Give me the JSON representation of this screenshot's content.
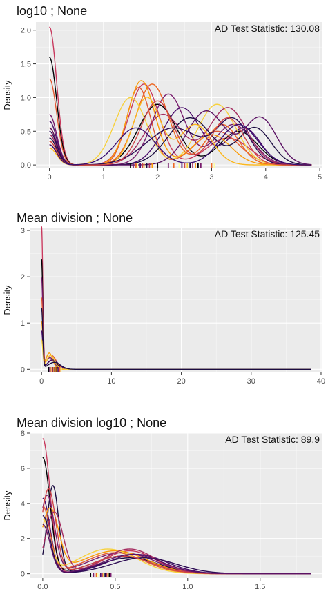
{
  "chart_data": [
    {
      "type": "line",
      "title": "log10 ; None",
      "annotation": "AD Test Statistic: 130.08",
      "xlabel": "",
      "ylabel": "Density",
      "xlim": [
        -0.25,
        5.05
      ],
      "ylim": [
        -0.05,
        2.12
      ],
      "x_ticks": [
        0,
        1,
        2,
        3,
        4,
        5
      ],
      "y_ticks": [
        0.0,
        0.5,
        1.0,
        1.5,
        2.0
      ],
      "grid": true,
      "legend": "none",
      "palette": [
        "#000004",
        "#1b0c41",
        "#4a0c6b",
        "#781c6d",
        "#a52c60",
        "#cf4446",
        "#ed6925",
        "#fb9b06",
        "#f7d13d",
        "#fcffa4"
      ],
      "series": [
        {
          "color": "#c8385d",
          "zero_peak": 2.05,
          "bumps": [
            [
              1.75,
              0.28,
              1.2
            ],
            [
              3.3,
              0.4,
              0.4
            ]
          ]
        },
        {
          "color": "#000004",
          "zero_peak": 1.6,
          "bumps": [
            [
              2.0,
              0.35,
              0.9
            ],
            [
              3.5,
              0.35,
              0.5
            ]
          ]
        },
        {
          "color": "#e35933",
          "zero_peak": 1.28,
          "bumps": [
            [
              1.65,
              0.22,
              1.15
            ],
            [
              3.1,
              0.4,
              0.5
            ]
          ]
        },
        {
          "color": "#781c6d",
          "zero_peak": 0.75,
          "bumps": [
            [
              2.2,
              0.3,
              1.05
            ],
            [
              3.4,
              0.35,
              0.6
            ]
          ]
        },
        {
          "color": "#4a0c6b",
          "zero_peak": 0.65,
          "bumps": [
            [
              2.45,
              0.35,
              0.85
            ],
            [
              3.6,
              0.3,
              0.55
            ]
          ]
        },
        {
          "color": "#fb9b06",
          "zero_peak": 0.55,
          "bumps": [
            [
              1.7,
              0.25,
              1.25
            ],
            [
              3.0,
              0.35,
              0.45
            ]
          ]
        },
        {
          "color": "#f7d13d",
          "zero_peak": 0.35,
          "bumps": [
            [
              1.5,
              0.3,
              1.0
            ],
            [
              3.1,
              0.35,
              0.9
            ]
          ]
        },
        {
          "color": "#a52c60",
          "zero_peak": 0.45,
          "bumps": [
            [
              2.1,
              0.35,
              0.75
            ],
            [
              3.3,
              0.35,
              0.85
            ]
          ]
        },
        {
          "color": "#1b0c41",
          "zero_peak": 0.4,
          "bumps": [
            [
              2.6,
              0.4,
              0.7
            ],
            [
              3.8,
              0.3,
              0.55
            ]
          ]
        },
        {
          "color": "#ed6925",
          "zero_peak": 0.3,
          "bumps": [
            [
              1.9,
              0.3,
              1.2
            ],
            [
              3.2,
              0.3,
              0.6
            ]
          ]
        },
        {
          "color": "#5b1264",
          "zero_peak": 0.55,
          "bumps": [
            [
              2.9,
              0.35,
              0.8
            ],
            [
              3.9,
              0.3,
              0.7
            ]
          ]
        },
        {
          "color": "#fcb71c",
          "zero_peak": 0.25,
          "bumps": [
            [
              1.8,
              0.25,
              1.0
            ],
            [
              2.7,
              0.3,
              0.6
            ]
          ]
        },
        {
          "color": "#2c0b54",
          "zero_peak": 0.5,
          "bumps": [
            [
              2.3,
              0.5,
              0.55
            ],
            [
              3.4,
              0.3,
              0.65
            ]
          ]
        },
        {
          "color": "#cf4446",
          "zero_peak": 0.35,
          "bumps": [
            [
              2.0,
              0.3,
              0.95
            ],
            [
              3.3,
              0.3,
              0.7
            ]
          ]
        },
        {
          "color": "#3b0f70",
          "zero_peak": 0.3,
          "bumps": [
            [
              1.6,
              0.35,
              0.55
            ],
            [
              3.5,
              0.35,
              0.6
            ]
          ]
        }
      ],
      "rug": [
        1.5,
        1.55,
        1.6,
        1.63,
        1.68,
        1.72,
        1.75,
        1.8,
        1.85,
        1.9,
        2.0,
        2.2,
        2.3,
        2.4,
        2.45,
        2.5,
        2.55,
        2.6,
        2.65,
        2.7,
        2.75,
        2.8,
        3.0,
        3.05
      ]
    },
    {
      "type": "line",
      "title": "Mean division ; None",
      "annotation": "AD Test Statistic: 125.45",
      "xlabel": "",
      "ylabel": "Density",
      "xlim": [
        -1.7,
        40.2
      ],
      "ylim": [
        -0.07,
        3.06
      ],
      "x_ticks": [
        0,
        10,
        20,
        30,
        40
      ],
      "y_ticks": [
        0,
        1,
        2,
        3
      ],
      "grid": true,
      "legend": "none",
      "palette": [
        "#000004",
        "#1b0c41",
        "#4a0c6b",
        "#781c6d",
        "#a52c60",
        "#cf4446",
        "#ed6925",
        "#fb9b06",
        "#f7d13d",
        "#fcffa4"
      ],
      "series": [
        {
          "color": "#c8385d",
          "zero_peak": 3.05,
          "bumps": [
            [
              1.3,
              0.6,
              0.3
            ]
          ]
        },
        {
          "color": "#000004",
          "zero_peak": 2.35,
          "bumps": [
            [
              1.5,
              0.7,
              0.2
            ]
          ]
        },
        {
          "color": "#781c6d",
          "zero_peak": 1.95,
          "bumps": [
            [
              1.2,
              0.6,
              0.25
            ]
          ]
        },
        {
          "color": "#e35933",
          "zero_peak": 1.5,
          "bumps": [
            [
              1.4,
              0.7,
              0.3
            ]
          ]
        },
        {
          "color": "#fb9b06",
          "zero_peak": 1.0,
          "bumps": [
            [
              1.1,
              0.5,
              0.35
            ]
          ]
        },
        {
          "color": "#4a0c6b",
          "zero_peak": 0.8,
          "bumps": [
            [
              1.6,
              0.8,
              0.2
            ]
          ]
        },
        {
          "color": "#f7d13d",
          "zero_peak": 0.6,
          "bumps": [
            [
              1.3,
              0.6,
              0.3
            ]
          ]
        },
        {
          "color": "#1b0c41",
          "zero_peak": 1.3,
          "bumps": [
            [
              1.8,
              0.9,
              0.15
            ]
          ]
        }
      ],
      "rug": [
        1.0,
        1.2,
        1.4,
        1.5,
        1.6,
        1.7,
        1.8,
        1.9,
        2.0,
        2.1,
        2.2,
        2.4,
        2.6,
        2.8
      ]
    },
    {
      "type": "line",
      "title": "Mean division log10 ; None",
      "annotation": "AD Test Statistic: 89.9",
      "xlabel": "",
      "ylabel": "Density",
      "xlim": [
        -0.09,
        1.93
      ],
      "ylim": [
        -0.25,
        8.0
      ],
      "x_ticks": [
        0.0,
        0.5,
        1.0,
        1.5
      ],
      "y_ticks": [
        0,
        2,
        4,
        6,
        8
      ],
      "grid": true,
      "legend": "none",
      "palette": [
        "#000004",
        "#1b0c41",
        "#4a0c6b",
        "#781c6d",
        "#a52c60",
        "#cf4446",
        "#ed6925",
        "#fb9b06",
        "#f7d13d",
        "#fcffa4"
      ],
      "series": [
        {
          "color": "#c8385d",
          "zero_peak": 7.7,
          "bumps": [
            [
              0.6,
              0.18,
              1.3
            ]
          ]
        },
        {
          "color": "#000004",
          "zero_peak": 6.6,
          "bumps": [
            [
              0.55,
              0.2,
              1.0
            ]
          ]
        },
        {
          "color": "#1b0c41",
          "zero_peak": 0.0,
          "bumps": [
            [
              0.07,
              0.04,
              5.0
            ],
            [
              0.6,
              0.2,
              0.9
            ]
          ]
        },
        {
          "color": "#4a0c6b",
          "zero_peak": 4.3,
          "bumps": [
            [
              0.65,
              0.2,
              1.1
            ]
          ]
        },
        {
          "color": "#781c6d",
          "zero_peak": 0.0,
          "bumps": [
            [
              0.03,
              0.05,
              4.4
            ],
            [
              0.55,
              0.22,
              1.2
            ]
          ]
        },
        {
          "color": "#e35933",
          "zero_peak": 3.8,
          "bumps": [
            [
              0.5,
              0.2,
              1.2
            ]
          ]
        },
        {
          "color": "#fb9b06",
          "zero_peak": 0.0,
          "bumps": [
            [
              0.05,
              0.06,
              3.6
            ],
            [
              0.5,
              0.22,
              1.3
            ]
          ]
        },
        {
          "color": "#f7d13d",
          "zero_peak": 3.0,
          "bumps": [
            [
              0.45,
              0.2,
              1.4
            ]
          ]
        },
        {
          "color": "#a52c60",
          "zero_peak": 0.0,
          "bumps": [
            [
              0.08,
              0.06,
              3.5
            ],
            [
              0.6,
              0.18,
              1.4
            ]
          ]
        },
        {
          "color": "#2c0b54",
          "zero_peak": 3.3,
          "bumps": [
            [
              0.7,
              0.22,
              0.9
            ]
          ]
        },
        {
          "color": "#cf4446",
          "zero_peak": 0.0,
          "bumps": [
            [
              0.04,
              0.05,
              4.8
            ],
            [
              0.55,
              0.2,
              1.0
            ]
          ]
        },
        {
          "color": "#5b1264",
          "zero_peak": 2.8,
          "bumps": [
            [
              0.62,
              0.2,
              1.1
            ]
          ]
        }
      ],
      "rug": [
        0.33,
        0.35,
        0.37,
        0.38,
        0.4,
        0.41,
        0.42,
        0.43,
        0.44,
        0.45,
        0.46,
        0.47
      ]
    }
  ]
}
